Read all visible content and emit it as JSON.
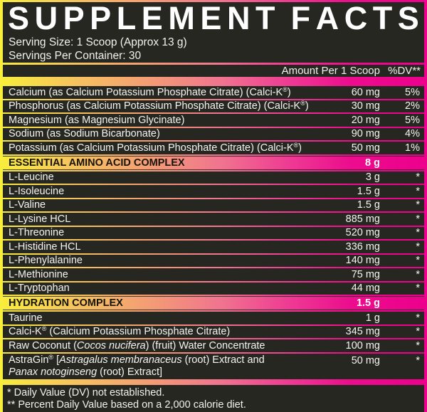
{
  "colors": {
    "panel_bg": "#272722",
    "gradient_yellow": "#f8ee3b",
    "gradient_orange": "#f39a76",
    "gradient_magenta": "#ec008c",
    "text_light": "#f4f4f1",
    "text_dark": "#16150c"
  },
  "header": {
    "title": "SUPPLEMENT FACTS",
    "serving_size": "Serving Size: 1 Scoop (Approx 13 g)",
    "servings_per_container": "Servings Per Container: 30"
  },
  "columns": {
    "amount_header": "Amount Per 1 Scoop",
    "dv_header": "%DV**"
  },
  "table": {
    "rows": [
      {
        "type": "item",
        "name": [
          {
            "t": "Calcium (as Calcium Potassium Phosphate Citrate) (Calci-K"
          },
          {
            "t": "®",
            "s": "sup"
          },
          {
            "t": ")"
          }
        ],
        "amount": "60 mg",
        "dv": "5%"
      },
      {
        "type": "item",
        "name": [
          {
            "t": "Phosphorus (as Calcium Potassium Phosphate Citrate) (Calci-K"
          },
          {
            "t": "®",
            "s": "sup"
          },
          {
            "t": ")"
          }
        ],
        "amount": "30 mg",
        "dv": "2%"
      },
      {
        "type": "item",
        "name": [
          {
            "t": "Magnesium (as Magnesium Glycinate)"
          }
        ],
        "amount": "20 mg",
        "dv": "5%"
      },
      {
        "type": "item",
        "name": [
          {
            "t": "Sodium (as Sodium Bicarbonate)"
          }
        ],
        "amount": "90 mg",
        "dv": "4%"
      },
      {
        "type": "item",
        "name": [
          {
            "t": "Potassium (as Calcium Potassium Phosphate Citrate) (Calci-K"
          },
          {
            "t": "®",
            "s": "sup"
          },
          {
            "t": ")"
          }
        ],
        "amount": "50 mg",
        "dv": "1%"
      },
      {
        "type": "section",
        "name": "ESSENTIAL AMINO ACID COMPLEX",
        "amount": "8 g",
        "dv": ""
      },
      {
        "type": "item",
        "name": [
          {
            "t": "L-Leucine"
          }
        ],
        "amount": "3 g",
        "dv": "*"
      },
      {
        "type": "item",
        "name": [
          {
            "t": "L-Isoleucine"
          }
        ],
        "amount": "1.5 g",
        "dv": "*"
      },
      {
        "type": "item",
        "name": [
          {
            "t": "L-Valine"
          }
        ],
        "amount": "1.5 g",
        "dv": "*"
      },
      {
        "type": "item",
        "name": [
          {
            "t": "L-Lysine HCL"
          }
        ],
        "amount": "885 mg",
        "dv": "*"
      },
      {
        "type": "item",
        "name": [
          {
            "t": "L-Threonine"
          }
        ],
        "amount": "520 mg",
        "dv": "*"
      },
      {
        "type": "item",
        "name": [
          {
            "t": "L-Histidine HCL"
          }
        ],
        "amount": "336 mg",
        "dv": "*"
      },
      {
        "type": "item",
        "name": [
          {
            "t": "L-Phenylalanine"
          }
        ],
        "amount": "140 mg",
        "dv": "*"
      },
      {
        "type": "item",
        "name": [
          {
            "t": "L-Methionine"
          }
        ],
        "amount": "75 mg",
        "dv": "*"
      },
      {
        "type": "item",
        "name": [
          {
            "t": "L-Tryptophan"
          }
        ],
        "amount": "44 mg",
        "dv": "*"
      },
      {
        "type": "section",
        "name": "HYDRATION COMPLEX",
        "amount": "1.5 g",
        "dv": ""
      },
      {
        "type": "item",
        "name": [
          {
            "t": "Taurine"
          }
        ],
        "amount": "1 g",
        "dv": "*"
      },
      {
        "type": "item",
        "name": [
          {
            "t": "Calci-K"
          },
          {
            "t": "®",
            "s": "sup"
          },
          {
            "t": " (Calcium Potassium Phosphate Citrate)"
          }
        ],
        "amount": "345 mg",
        "dv": "*"
      },
      {
        "type": "item",
        "name": [
          {
            "t": "Raw Coconut ("
          },
          {
            "t": "Cocos nucifera",
            "s": "i"
          },
          {
            "t": ") (fruit) Water Concentrate"
          }
        ],
        "amount": "100 mg",
        "dv": "*"
      },
      {
        "type": "item",
        "two": true,
        "name": [
          {
            "t": "AstraGin"
          },
          {
            "t": "®",
            "s": "sup"
          },
          {
            "t": " ["
          },
          {
            "t": "Astragalus membranaceus",
            "s": "i"
          },
          {
            "t": " (root) Extract and"
          },
          {
            "s": "br"
          },
          {
            "t": "Panax notoginseng",
            "s": "i"
          },
          {
            "t": " (root) Extract]"
          }
        ],
        "amount": "50 mg",
        "dv": "*"
      }
    ]
  },
  "footnotes": {
    "dv_not_established": "* Daily Value (DV) not established.",
    "percent_dv_basis": "** Percent Daily Value based on a 2,000 calorie diet."
  }
}
